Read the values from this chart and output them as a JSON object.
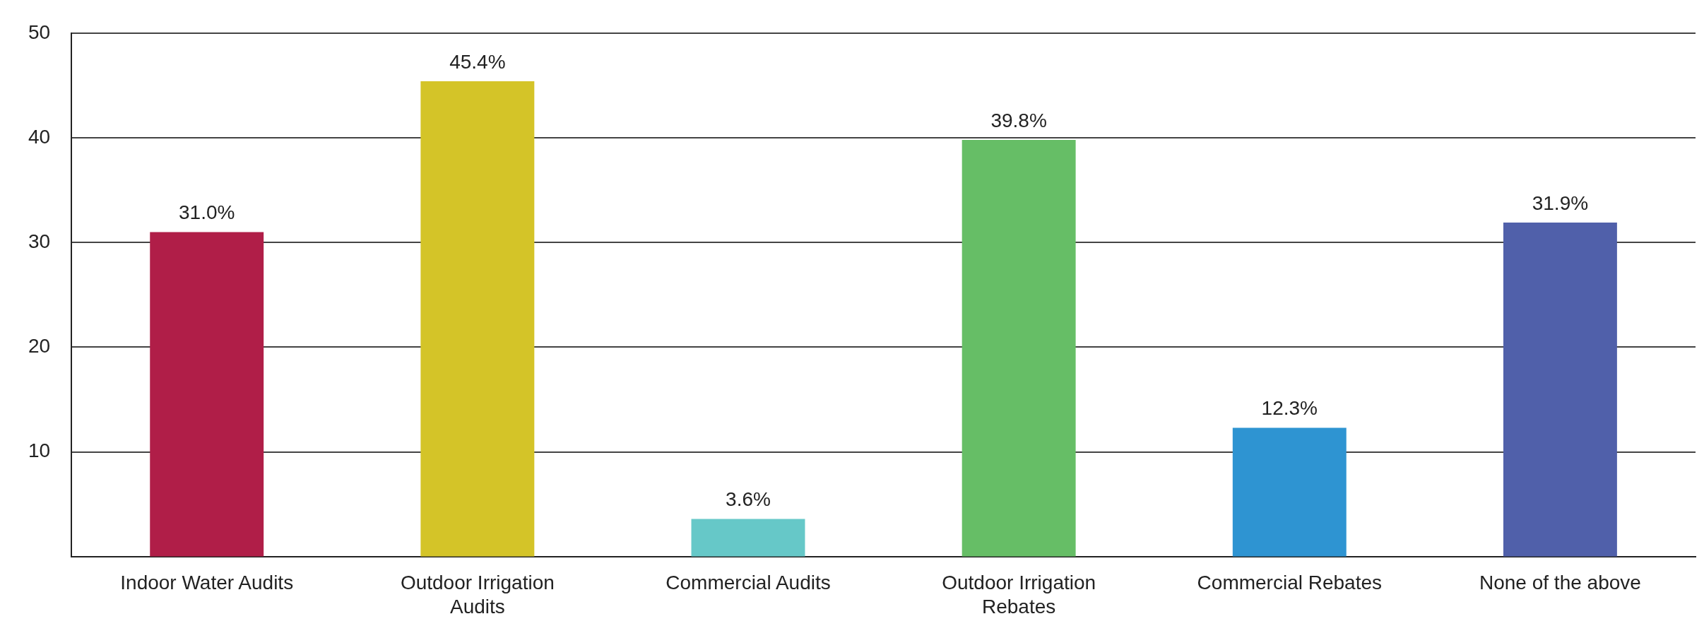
{
  "chart_data": {
    "type": "bar",
    "categories": [
      "Indoor Water Audits",
      "Outdoor Irrigation Audits",
      "Commercial Audits",
      "Outdoor Irrigation Rebates",
      "Commercial Rebates",
      "None of the above"
    ],
    "values": [
      31.0,
      45.4,
      3.6,
      39.8,
      12.3,
      31.9
    ],
    "colors": [
      "#b01e48",
      "#d4c428",
      "#66c8c8",
      "#66be66",
      "#2e94d2",
      "#5060aa"
    ],
    "value_labels": [
      "31.0%",
      "45.4%",
      "3.6%",
      "39.8%",
      "12.3%",
      "31.9%"
    ],
    "ylim": [
      0,
      50
    ],
    "yticks": [
      10,
      20,
      30,
      40,
      50
    ],
    "grid": "y"
  }
}
